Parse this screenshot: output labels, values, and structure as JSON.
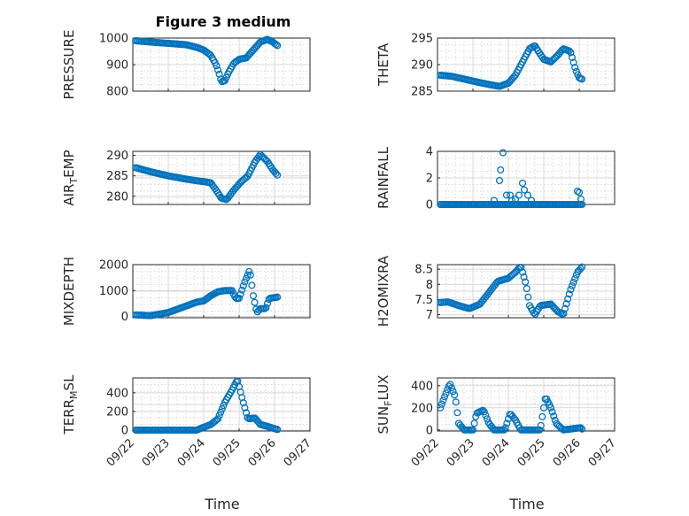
{
  "figure": {
    "title": "Figure 3 medium",
    "xlabel": "Time"
  },
  "colors": {
    "marker": "#0072bd",
    "axis": "#262626"
  },
  "chart_data": [
    {
      "type": "scatter",
      "id": "pressure",
      "ylabel": "PRESSURE",
      "xlim": [
        0,
        5
      ],
      "ylim": [
        800,
        1000
      ],
      "yticks": [
        800,
        900,
        1000
      ],
      "xticks": [],
      "grid": true,
      "marker": "circle-open",
      "knots": [
        [
          0.08,
          990
        ],
        [
          0.5,
          985
        ],
        [
          1.0,
          980
        ],
        [
          1.5,
          975
        ],
        [
          1.8,
          965
        ],
        [
          2.0,
          955
        ],
        [
          2.2,
          935
        ],
        [
          2.35,
          900
        ],
        [
          2.45,
          860
        ],
        [
          2.5,
          835
        ],
        [
          2.6,
          840
        ],
        [
          2.7,
          870
        ],
        [
          2.85,
          905
        ],
        [
          3.0,
          920
        ],
        [
          3.2,
          925
        ],
        [
          3.4,
          955
        ],
        [
          3.6,
          985
        ],
        [
          3.8,
          995
        ],
        [
          3.95,
          985
        ],
        [
          4.05,
          975
        ],
        [
          4.1,
          970
        ]
      ]
    },
    {
      "type": "scatter",
      "id": "theta",
      "ylabel": "THETA",
      "xlim": [
        0,
        5
      ],
      "ylim": [
        285,
        295
      ],
      "yticks": [
        285,
        290,
        295
      ],
      "xticks": [],
      "grid": true,
      "marker": "circle-open",
      "knots": [
        [
          0.08,
          288
        ],
        [
          0.4,
          287.8
        ],
        [
          0.8,
          287.2
        ],
        [
          1.2,
          286.6
        ],
        [
          1.5,
          286.2
        ],
        [
          1.75,
          285.9
        ],
        [
          2.0,
          286.5
        ],
        [
          2.2,
          288.0
        ],
        [
          2.4,
          290.5
        ],
        [
          2.6,
          293.0
        ],
        [
          2.75,
          293.6
        ],
        [
          2.85,
          292.5
        ],
        [
          3.0,
          291.0
        ],
        [
          3.2,
          290.5
        ],
        [
          3.4,
          291.8
        ],
        [
          3.55,
          293.0
        ],
        [
          3.75,
          292.5
        ],
        [
          3.9,
          289.0
        ],
        [
          4.0,
          287.5
        ],
        [
          4.1,
          287.2
        ]
      ]
    },
    {
      "type": "scatter",
      "id": "air_temp",
      "ylabel": "AIR_TEMP",
      "ylabel_main": "AIR",
      "ylabel_sub": "T",
      "ylabel_rest": "EMP",
      "xlim": [
        0,
        5
      ],
      "ylim": [
        278,
        291
      ],
      "yticks": [
        280,
        285,
        290
      ],
      "xticks": [],
      "grid": true,
      "marker": "circle-open",
      "knots": [
        [
          0.08,
          287
        ],
        [
          0.5,
          286
        ],
        [
          1.0,
          285
        ],
        [
          1.5,
          284.2
        ],
        [
          1.8,
          283.8
        ],
        [
          2.0,
          283.6
        ],
        [
          2.2,
          283.3
        ],
        [
          2.35,
          281.5
        ],
        [
          2.5,
          279.5
        ],
        [
          2.65,
          279.2
        ],
        [
          2.85,
          281.5
        ],
        [
          3.05,
          283.5
        ],
        [
          3.25,
          285.0
        ],
        [
          3.45,
          288.5
        ],
        [
          3.6,
          290.2
        ],
        [
          3.8,
          288.5
        ],
        [
          3.95,
          286.5
        ],
        [
          4.05,
          285.5
        ],
        [
          4.1,
          285.0
        ]
      ]
    },
    {
      "type": "scatter",
      "id": "rainfall",
      "ylabel": "RAINFALL",
      "xlim": [
        0,
        5
      ],
      "ylim": [
        0,
        4
      ],
      "yticks": [
        0,
        2,
        4
      ],
      "xticks": [],
      "grid": true,
      "marker": "circle-open",
      "knots": [
        [
          0.08,
          0
        ],
        [
          4.1,
          0
        ]
      ],
      "extra_points": [
        [
          1.6,
          0.3
        ],
        [
          1.75,
          1.8
        ],
        [
          1.78,
          2.6
        ],
        [
          1.85,
          3.9
        ],
        [
          1.95,
          0.7
        ],
        [
          2.05,
          0.7
        ],
        [
          2.1,
          0.3
        ],
        [
          2.2,
          0.4
        ],
        [
          2.3,
          0.7
        ],
        [
          2.4,
          1.6
        ],
        [
          2.45,
          1.1
        ],
        [
          2.55,
          0.7
        ],
        [
          2.65,
          0.3
        ],
        [
          3.95,
          1.0
        ],
        [
          4.0,
          0.9
        ],
        [
          4.05,
          0.4
        ]
      ]
    },
    {
      "type": "scatter",
      "id": "mixdepth",
      "ylabel": "MIXDEPTH",
      "xlim": [
        0,
        5
      ],
      "ylim": [
        -50,
        2000
      ],
      "yticks": [
        0,
        1000,
        2000
      ],
      "xticks": [],
      "grid": true,
      "marker": "circle-open",
      "knots": [
        [
          0.08,
          60
        ],
        [
          0.5,
          30
        ],
        [
          1.0,
          150
        ],
        [
          1.4,
          350
        ],
        [
          1.8,
          550
        ],
        [
          2.0,
          600
        ],
        [
          2.2,
          800
        ],
        [
          2.4,
          950
        ],
        [
          2.6,
          1000
        ],
        [
          2.8,
          1000
        ],
        [
          2.9,
          700
        ],
        [
          3.0,
          700
        ],
        [
          3.15,
          1300
        ],
        [
          3.3,
          1800
        ],
        [
          3.4,
          800
        ],
        [
          3.5,
          150
        ],
        [
          3.6,
          300
        ],
        [
          3.75,
          300
        ],
        [
          3.85,
          700
        ],
        [
          4.1,
          750
        ]
      ]
    },
    {
      "type": "scatter",
      "id": "h2omixra",
      "ylabel": "H2OMIXRA",
      "xlim": [
        0,
        5
      ],
      "ylim": [
        6.9,
        8.65
      ],
      "yticks": [
        7,
        7.5,
        8,
        8.5
      ],
      "ytick_labels": [
        "7",
        "7.5",
        "8",
        "8.5"
      ],
      "xticks": [],
      "grid": true,
      "marker": "circle-open",
      "knots": [
        [
          0.08,
          7.4
        ],
        [
          0.3,
          7.42
        ],
        [
          0.6,
          7.3
        ],
        [
          0.9,
          7.2
        ],
        [
          1.2,
          7.35
        ],
        [
          1.5,
          7.8
        ],
        [
          1.7,
          8.1
        ],
        [
          2.0,
          8.2
        ],
        [
          2.2,
          8.4
        ],
        [
          2.35,
          8.6
        ],
        [
          2.5,
          8.0
        ],
        [
          2.6,
          7.3
        ],
        [
          2.75,
          7.0
        ],
        [
          2.9,
          7.3
        ],
        [
          3.2,
          7.35
        ],
        [
          3.4,
          7.1
        ],
        [
          3.55,
          7.0
        ],
        [
          3.75,
          7.8
        ],
        [
          3.95,
          8.4
        ],
        [
          4.1,
          8.6
        ]
      ]
    },
    {
      "type": "scatter",
      "id": "terr_msl",
      "ylabel": "TERR_MSL",
      "ylabel_main": "TERR",
      "ylabel_sub": "M",
      "ylabel_rest": "SL",
      "xlim": [
        0,
        5
      ],
      "ylim": [
        -10,
        560
      ],
      "yticks": [
        0,
        200,
        400
      ],
      "xticks": [
        "09/22",
        "09/23",
        "09/24",
        "09/25",
        "09/26",
        "09/27"
      ],
      "grid": true,
      "marker": "circle-open",
      "knots": [
        [
          0.08,
          0
        ],
        [
          1.8,
          0
        ],
        [
          2.0,
          30
        ],
        [
          2.2,
          60
        ],
        [
          2.4,
          120
        ],
        [
          2.6,
          300
        ],
        [
          2.8,
          430
        ],
        [
          2.95,
          540
        ],
        [
          3.1,
          320
        ],
        [
          3.25,
          120
        ],
        [
          3.45,
          130
        ],
        [
          3.6,
          60
        ],
        [
          3.8,
          40
        ],
        [
          4.0,
          15
        ],
        [
          4.1,
          5
        ]
      ]
    },
    {
      "type": "scatter",
      "id": "sunflux",
      "ylabel": "SUN_FLUX",
      "ylabel_main": "SUN",
      "ylabel_sub": "F",
      "ylabel_rest": "LUX",
      "xlim": [
        0,
        5
      ],
      "ylim": [
        -10,
        470
      ],
      "yticks": [
        0,
        200,
        400
      ],
      "xticks": [
        "09/22",
        "09/23",
        "09/24",
        "09/25",
        "09/26",
        "09/27"
      ],
      "grid": true,
      "marker": "circle-open",
      "knots": [
        [
          0.08,
          200
        ],
        [
          0.2,
          300
        ],
        [
          0.35,
          420
        ],
        [
          0.5,
          300
        ],
        [
          0.6,
          60
        ],
        [
          0.75,
          0
        ],
        [
          1.0,
          0
        ],
        [
          1.1,
          150
        ],
        [
          1.3,
          180
        ],
        [
          1.45,
          60
        ],
        [
          1.6,
          0
        ],
        [
          1.9,
          0
        ],
        [
          2.05,
          150
        ],
        [
          2.2,
          90
        ],
        [
          2.35,
          0
        ],
        [
          2.9,
          0
        ],
        [
          3.05,
          300
        ],
        [
          3.2,
          200
        ],
        [
          3.35,
          60
        ],
        [
          3.55,
          0
        ],
        [
          4.05,
          20
        ],
        [
          4.1,
          0
        ]
      ]
    }
  ]
}
